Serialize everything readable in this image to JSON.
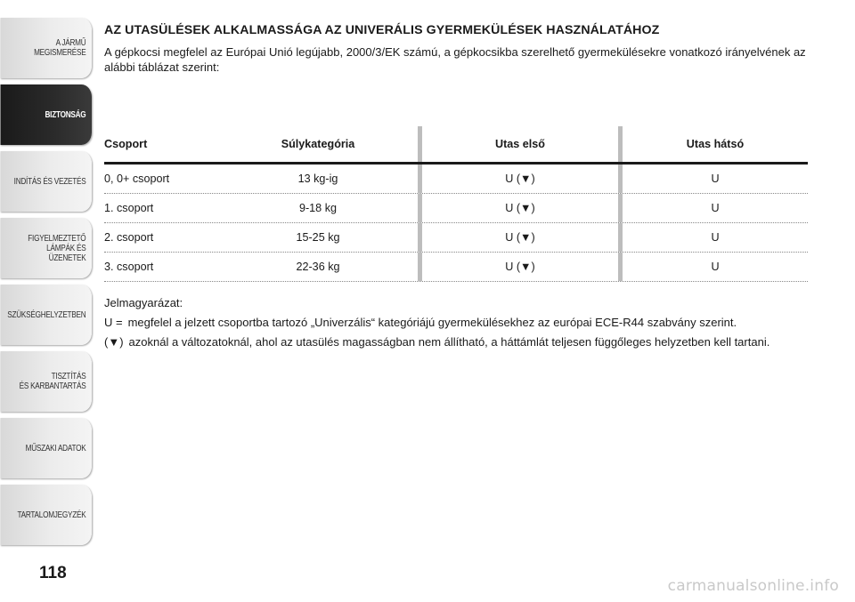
{
  "sidebar": {
    "tabs": [
      {
        "label": "A JÁRMŰ\nMEGISMERÉSE",
        "active": false
      },
      {
        "label": "BIZTONSÁG",
        "active": true
      },
      {
        "label": "INDÍTÁS ÉS VEZETÉS",
        "active": false
      },
      {
        "label": "FIGYELMEZTETŐ\nLÁMPÁK ÉS\nÜZENETEK",
        "active": false
      },
      {
        "label": "SZÜKSÉGHELYZETBEN",
        "active": false
      },
      {
        "label": "TISZTÍTÁS\nÉS KARBANTARTÁS",
        "active": false
      },
      {
        "label": "MŰSZAKI ADATOK",
        "active": false
      },
      {
        "label": "TARTALOMJEGYZÉK",
        "active": false
      }
    ]
  },
  "page_number": "118",
  "heading": "AZ UTASÜLÉSEK ALKALMASSÁGA AZ UNIVERÁLIS GYERMEKÜLÉSEK HASZNÁLATÁHOZ",
  "intro": "A gépkocsi megfelel az Európai Unió legújabb, 2000/3/EK számú, a gépkocsikba szerelhető gyermekülésekre vonatkozó irányelvének az alábbi táblázat szerint:",
  "table": {
    "headers": [
      "Csoport",
      "Súlykategória",
      "Utas első",
      "Utas hátsó"
    ],
    "rows": [
      [
        "0, 0+ csoport",
        "13 kg-ig",
        "U (▼)",
        "U"
      ],
      [
        "1. csoport",
        "9-18 kg",
        "U (▼)",
        "U"
      ],
      [
        "2. csoport",
        "15-25 kg",
        "U (▼)",
        "U"
      ],
      [
        "3. csoport",
        "22-36 kg",
        "U (▼)",
        "U"
      ]
    ]
  },
  "legend": {
    "title": "Jelmagyarázat:",
    "items": [
      {
        "key": "U =",
        "text": "megfelel a jelzett csoportba tartozó „Univerzális“ kategóriájú gyermekülésekhez az európai ECE-R44 szabvány szerint."
      },
      {
        "key": "(▼)",
        "text": "azoknál a változatoknál, ahol az utasülés magasságban nem állítható, a háttámlát teljesen függőleges helyzetben kell tartani."
      }
    ]
  },
  "watermark": "carmanualsonline.info"
}
